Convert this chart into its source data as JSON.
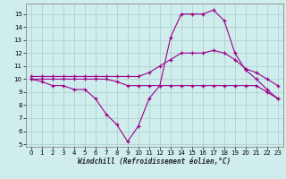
{
  "xlabel": "Windchill (Refroidissement éolien,°C)",
  "x": [
    0,
    1,
    2,
    3,
    4,
    5,
    6,
    7,
    8,
    9,
    10,
    11,
    12,
    13,
    14,
    15,
    16,
    17,
    18,
    19,
    20,
    21,
    22,
    23
  ],
  "line1": [
    10.0,
    9.8,
    9.5,
    9.5,
    9.2,
    9.2,
    8.5,
    7.3,
    6.5,
    5.2,
    6.4,
    8.5,
    9.5,
    13.2,
    15.0,
    15.0,
    15.0,
    15.3,
    14.5,
    12.0,
    10.7,
    10.0,
    9.2,
    8.5
  ],
  "line2": [
    10.2,
    10.2,
    10.2,
    10.2,
    10.2,
    10.2,
    10.2,
    10.2,
    10.2,
    10.2,
    10.2,
    10.5,
    11.0,
    11.5,
    12.0,
    12.0,
    12.0,
    12.2,
    12.0,
    11.5,
    10.8,
    10.5,
    10.0,
    9.5
  ],
  "line3": [
    10.0,
    10.0,
    10.0,
    10.0,
    10.0,
    10.0,
    10.0,
    10.0,
    9.8,
    9.5,
    9.5,
    9.5,
    9.5,
    9.5,
    9.5,
    9.5,
    9.5,
    9.5,
    9.5,
    9.5,
    9.5,
    9.5,
    9.0,
    8.5
  ],
  "line_color": "#9B008B",
  "bg_color": "#D0EDED",
  "grid_color": "#AACCCC",
  "ylim_min": 4.8,
  "ylim_max": 15.8,
  "xlim_min": -0.5,
  "xlim_max": 23.5,
  "yticks": [
    5,
    6,
    7,
    8,
    9,
    10,
    11,
    12,
    13,
    14,
    15
  ],
  "xticks": [
    0,
    1,
    2,
    3,
    4,
    5,
    6,
    7,
    8,
    9,
    10,
    11,
    12,
    13,
    14,
    15,
    16,
    17,
    18,
    19,
    20,
    21,
    22,
    23
  ]
}
